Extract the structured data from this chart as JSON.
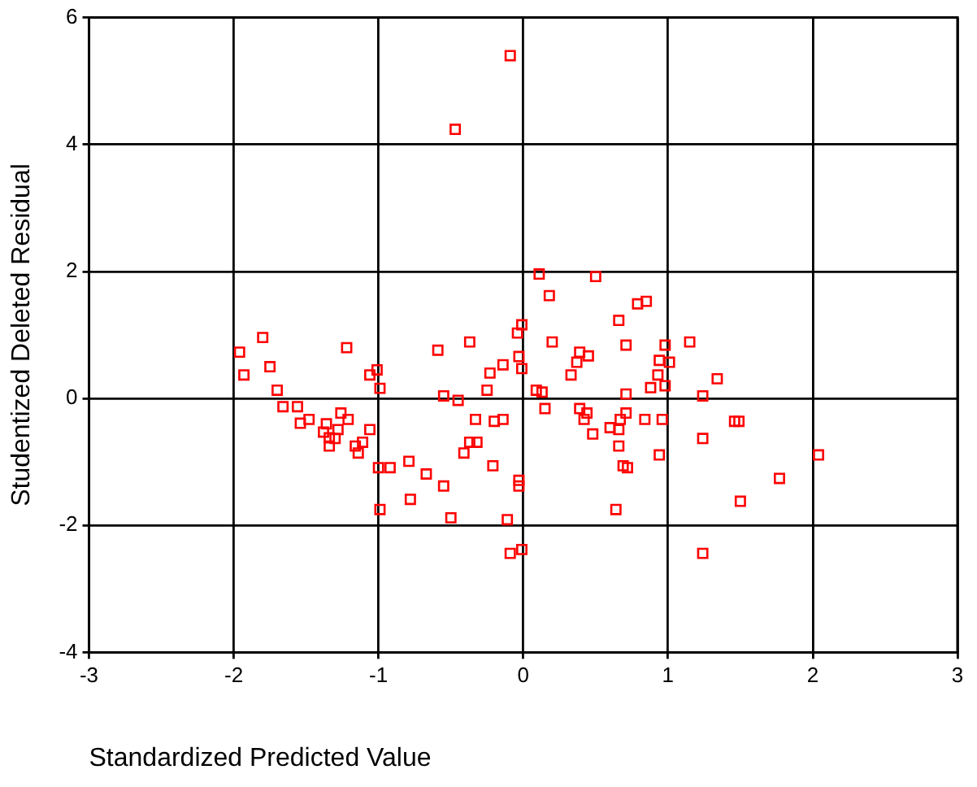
{
  "chart_data": {
    "type": "scatter",
    "xlabel": "Standardized Predicted Value",
    "ylabel": "Studentized Deleted Residual",
    "xlim": [
      -3,
      3
    ],
    "xticks": [
      -3,
      -2,
      -1,
      0,
      1,
      2,
      3
    ],
    "ylim": [
      -4,
      6
    ],
    "yticks": [
      -4,
      -2,
      0,
      2,
      4,
      6
    ],
    "grid": true,
    "legend": false,
    "marker": "square",
    "series": [
      {
        "color": "#ff0000",
        "x": [
          -0.09,
          -0.47,
          0.11,
          0.5,
          0.18,
          0.79,
          0.85,
          0.66,
          -0.01,
          -0.04,
          -1.8,
          -0.37,
          0.2,
          1.15,
          0.71,
          0.98,
          -1.96,
          -1.22,
          -0.59,
          0.39,
          0.45,
          -0.03,
          0.37,
          0.94,
          1.01,
          -1.01,
          -1.06,
          -0.14,
          -0.23,
          0.33,
          -0.01,
          -1.93,
          -1.75,
          0.93,
          1.34,
          -0.99,
          -1.7,
          -0.25,
          0.09,
          0.13,
          0.88,
          0.98,
          1.24,
          0.71,
          -0.55,
          -0.45,
          -1.66,
          -1.56,
          -1.48,
          -1.54,
          -1.26,
          -1.21,
          -1.36,
          -1.38,
          -1.28,
          -1.34,
          -1.3,
          -1.34,
          -1.06,
          -1.16,
          -1.11,
          -1.14,
          -0.33,
          -0.2,
          -0.14,
          0.15,
          0.39,
          0.44,
          0.42,
          0.71,
          0.84,
          0.96,
          0.6,
          0.66,
          0.67,
          0.48,
          1.46,
          1.49,
          1.24,
          0.66,
          0.94,
          2.04,
          -0.37,
          -0.32,
          -0.41,
          -1.0,
          -0.92,
          -0.79,
          -0.67,
          -0.21,
          0.69,
          0.72,
          1.77,
          -0.55,
          -0.03,
          -0.03,
          -0.78,
          1.5,
          -0.99,
          0.64,
          -0.5,
          -0.11,
          -0.09,
          -0.01,
          1.24
        ],
        "values": [
          5.4,
          4.24,
          1.96,
          1.92,
          1.62,
          1.49,
          1.53,
          1.23,
          1.16,
          1.03,
          0.96,
          0.89,
          0.89,
          0.89,
          0.84,
          0.84,
          0.73,
          0.8,
          0.76,
          0.73,
          0.67,
          0.66,
          0.57,
          0.6,
          0.57,
          0.45,
          0.37,
          0.53,
          0.4,
          0.37,
          0.47,
          0.37,
          0.5,
          0.37,
          0.31,
          0.16,
          0.13,
          0.13,
          0.13,
          0.1,
          0.17,
          0.2,
          0.04,
          0.07,
          0.04,
          -0.03,
          -0.13,
          -0.13,
          -0.33,
          -0.39,
          -0.23,
          -0.33,
          -0.4,
          -0.53,
          -0.49,
          -0.62,
          -0.63,
          -0.75,
          -0.49,
          -0.75,
          -0.69,
          -0.86,
          -0.33,
          -0.36,
          -0.33,
          -0.16,
          -0.16,
          -0.23,
          -0.33,
          -0.23,
          -0.33,
          -0.33,
          -0.46,
          -0.49,
          -0.33,
          -0.56,
          -0.36,
          -0.36,
          -0.63,
          -0.75,
          -0.89,
          -0.89,
          -0.69,
          -0.69,
          -0.86,
          -1.09,
          -1.09,
          -0.99,
          -1.19,
          -1.06,
          -1.06,
          -1.09,
          -1.26,
          -1.38,
          -1.29,
          -1.38,
          -1.59,
          -1.62,
          -1.75,
          -1.75,
          -1.88,
          -1.91,
          -2.44,
          -2.38,
          -2.44
        ]
      }
    ]
  }
}
